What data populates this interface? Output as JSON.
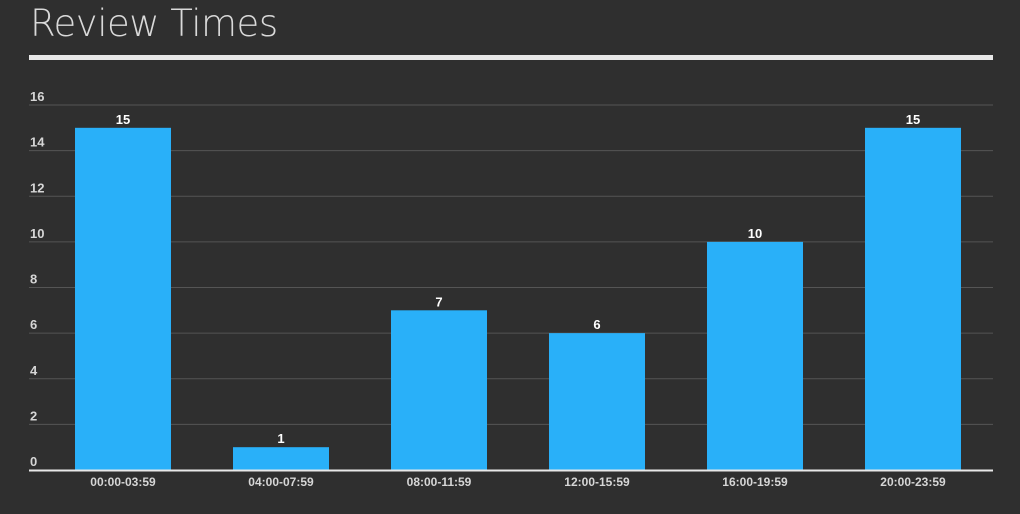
{
  "chart_data": {
    "type": "bar",
    "title": "Review Times",
    "xlabel": "",
    "ylabel": "",
    "categories": [
      "00:00-03:59",
      "04:00-07:59",
      "08:00-11:59",
      "12:00-15:59",
      "16:00-19:59",
      "20:00-23:59"
    ],
    "values": [
      15,
      1,
      7,
      6,
      10,
      15
    ],
    "ylim": [
      0,
      16
    ],
    "yticks": [
      0,
      2,
      4,
      6,
      8,
      10,
      12,
      14,
      16
    ],
    "grid": true,
    "data_labels": true,
    "legend": "none",
    "colors": {
      "bar": "#29b0f9",
      "background": "#2f2f2f",
      "grid": "#555555",
      "axis": "#e8e8e8",
      "text": "#d6d6d6"
    }
  }
}
